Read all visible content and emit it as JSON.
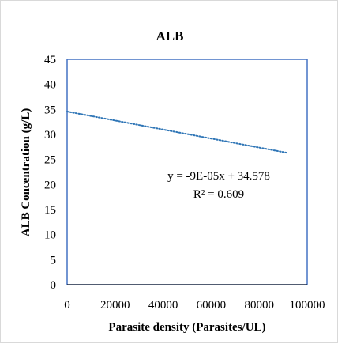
{
  "chart_data": {
    "type": "scatter",
    "title": "ALB",
    "xlabel": "Parasite density (Parasites/UL)",
    "ylabel": "ALB Concentration  (g/L)",
    "xlim": [
      0,
      100000
    ],
    "ylim": [
      0,
      45
    ],
    "x_ticks": [
      0,
      20000,
      40000,
      60000,
      80000,
      100000
    ],
    "y_ticks": [
      0,
      5,
      10,
      15,
      20,
      25,
      30,
      35,
      40,
      45
    ],
    "series": [
      {
        "type": "trendline",
        "style": "dotted",
        "x": [
          0,
          92000
        ],
        "y": [
          34.578,
          26.3
        ]
      }
    ],
    "annotations": {
      "equation": "y = -9E-05x + 34.578",
      "r_squared": "R² = 0.609"
    },
    "grid": false,
    "legend": "none",
    "colors": {
      "trendline": "#2e75b6",
      "plot_border": "#4472c4",
      "axis": "#000000"
    }
  }
}
